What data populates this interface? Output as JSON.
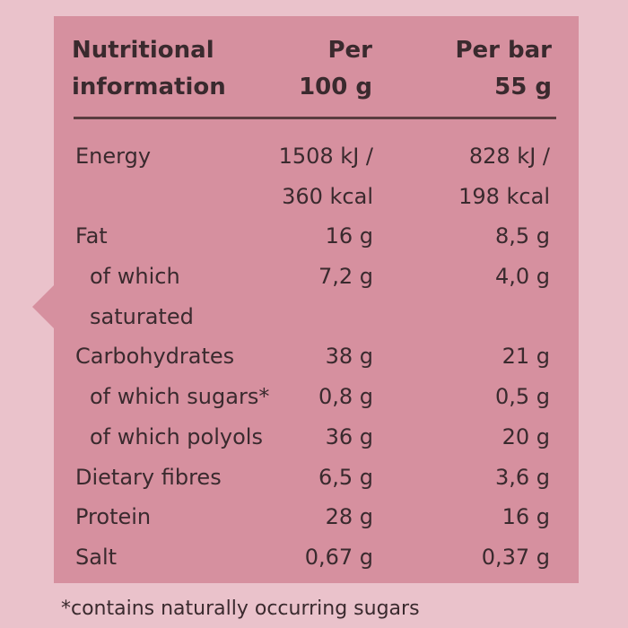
{
  "header": {
    "label_lines": [
      "Nutritional",
      "information"
    ],
    "per100_lines": [
      "Per",
      "100 g"
    ],
    "perbar_lines": [
      "Per bar",
      "55 g"
    ]
  },
  "rows": [
    {
      "label": "Energy",
      "per100": "1508 kJ /",
      "perbar": "828 kJ /",
      "indent": false
    },
    {
      "label": "",
      "per100": "360 kcal",
      "perbar": "198 kcal",
      "indent": false
    },
    {
      "label": "Fat",
      "per100": "16 g",
      "perbar": "8,5 g",
      "indent": false
    },
    {
      "label": "of which",
      "per100": "7,2 g",
      "perbar": "4,0 g",
      "indent": true
    },
    {
      "label": "saturated",
      "per100": "",
      "perbar": "",
      "indent": true
    },
    {
      "label": "Carbohydrates",
      "per100": "38 g",
      "perbar": "21 g",
      "indent": false
    },
    {
      "label": "of which sugars*",
      "per100": "0,8 g",
      "perbar": "0,5 g",
      "indent": true
    },
    {
      "label": "of which polyols",
      "per100": "36 g",
      "perbar": "20 g",
      "indent": true
    },
    {
      "label": "Dietary fibres",
      "per100": "6,5 g",
      "perbar": "3,6 g",
      "indent": false
    },
    {
      "label": "Protein",
      "per100": "28 g",
      "perbar": "16 g",
      "indent": false
    },
    {
      "label": "Salt",
      "per100": "0,67 g",
      "perbar": "0,37 g",
      "indent": false
    }
  ],
  "footnote": "*contains naturally occurring sugars",
  "colors": {
    "background": "#eac2cb",
    "panel": "#d6909f",
    "text": "#3a2a2e",
    "divider": "#5a3c3f"
  }
}
